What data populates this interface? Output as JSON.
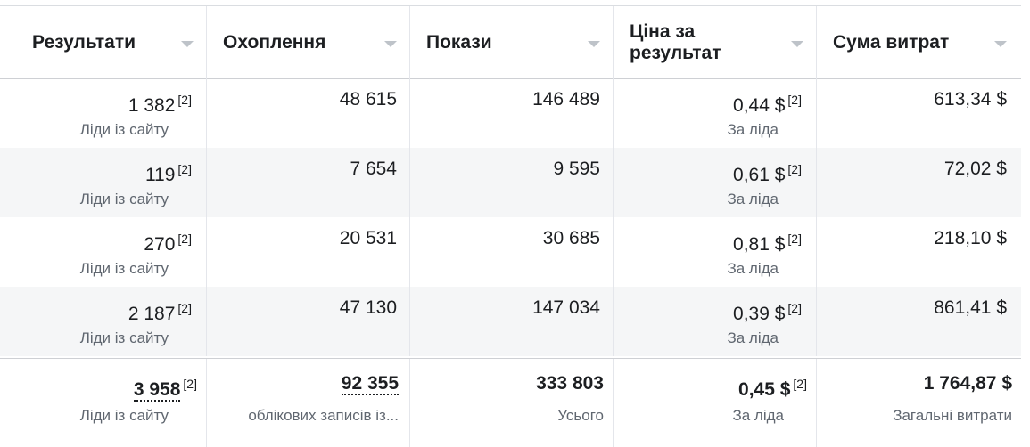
{
  "headers": [
    {
      "label": "Результати"
    },
    {
      "label": "Охоплення"
    },
    {
      "label": "Покази"
    },
    {
      "label": "Ціна за результат"
    },
    {
      "label": "Сума витрат"
    }
  ],
  "rows": [
    {
      "results": "1 382",
      "results_note": "[2]",
      "results_sub": "Ліди із сайту",
      "reach": "48 615",
      "impressions": "146 489",
      "cpr": "0,44 $",
      "cpr_note": "[2]",
      "cpr_sub": "За ліда",
      "spend": "613,34 $"
    },
    {
      "results": "119",
      "results_note": "[2]",
      "results_sub": "Ліди із сайту",
      "reach": "7 654",
      "impressions": "9 595",
      "cpr": "0,61 $",
      "cpr_note": "[2]",
      "cpr_sub": "За ліда",
      "spend": "72,02 $"
    },
    {
      "results": "270",
      "results_note": "[2]",
      "results_sub": "Ліди із сайту",
      "reach": "20 531",
      "impressions": "30 685",
      "cpr": "0,81 $",
      "cpr_note": "[2]",
      "cpr_sub": "За ліда",
      "spend": "218,10 $"
    },
    {
      "results": "2 187",
      "results_note": "[2]",
      "results_sub": "Ліди із сайту",
      "reach": "47 130",
      "impressions": "147 034",
      "cpr": "0,39 $",
      "cpr_note": "[2]",
      "cpr_sub": "За ліда",
      "spend": "861,41 $"
    }
  ],
  "totals": {
    "results": "3 958",
    "results_note": "[2]",
    "results_sub": "Ліди із сайту",
    "reach": "92 355",
    "reach_sub": "облікових записів із...",
    "impressions": "333 803",
    "impressions_sub": "Усього",
    "cpr": "0,45 $",
    "cpr_note": "[2]",
    "cpr_sub": "За ліда",
    "spend": "1 764,87 $",
    "spend_sub": "Загальні витрати"
  },
  "icons": {
    "sort": "sort-caret-down-icon"
  },
  "colors": {
    "header_border": "#ced0d4",
    "alt_row": "#f5f6f7",
    "subtext": "#606770",
    "sort_caret": "#bec3c9"
  }
}
